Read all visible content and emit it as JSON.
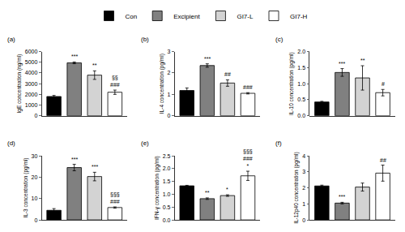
{
  "chart_data": [
    {
      "type": "bar",
      "title": "(a)",
      "y_label": "IgE concentration (ng/ml)",
      "categories": [
        "Con",
        "Excipient",
        "GI7-L",
        "GI7-H"
      ],
      "colors": [
        "#000000",
        "#808080",
        "#d3d3d3",
        "#ffffff"
      ],
      "values": [
        1800,
        4950,
        3800,
        2200
      ],
      "errors": [
        100,
        80,
        400,
        200
      ],
      "annotations": [
        [],
        [
          "***"
        ],
        [
          "**"
        ],
        [
          "§§",
          "###"
        ]
      ],
      "ylim": [
        0,
        6000
      ],
      "yticks": [
        0,
        1000,
        2000,
        3000,
        4000,
        5000,
        6000
      ],
      "tick_labels": "y",
      "legend": "top"
    },
    {
      "type": "bar",
      "title": "(b)",
      "y_label": "IL-4 concentration (pg/ml)",
      "categories": [
        "Con",
        "Excipient",
        "GI7-L",
        "GI7-H"
      ],
      "colors": [
        "#000000",
        "#808080",
        "#d3d3d3",
        "#ffffff"
      ],
      "values": [
        1.18,
        2.35,
        1.53,
        1.05
      ],
      "errors": [
        0.12,
        0.08,
        0.15,
        0.03
      ],
      "annotations": [
        [],
        [
          "***"
        ],
        [
          "##"
        ],
        [
          "###"
        ]
      ],
      "ylim": [
        0,
        3
      ],
      "yticks": [
        0,
        1,
        2,
        3
      ],
      "tick_labels": "y"
    },
    {
      "type": "bar",
      "title": "(c)",
      "y_label": "IL-10 concentration (pg/ml)",
      "categories": [
        "Con",
        "Excipient",
        "GI7-L",
        "GI7-H"
      ],
      "colors": [
        "#000000",
        "#808080",
        "#d3d3d3",
        "#ffffff"
      ],
      "values": [
        0.43,
        1.35,
        1.18,
        0.72
      ],
      "errors": [
        0.02,
        0.12,
        0.38,
        0.1
      ],
      "annotations": [
        [],
        [
          "***"
        ],
        [
          "**"
        ],
        [
          "#"
        ]
      ],
      "ylim": [
        0,
        2
      ],
      "yticks": [
        {
          "value": 0,
          "label": "0.0"
        },
        0.5,
        {
          "value": 1,
          "label": "1.0"
        },
        1.5,
        {
          "value": 2,
          "label": "2.0"
        }
      ],
      "tick_labels": "y"
    },
    {
      "type": "bar",
      "title": "(d)",
      "y_label": "IL-3 concentration (pg/ml)",
      "categories": [
        "Con",
        "Excipient",
        "GI7-L",
        "GI7-H"
      ],
      "colors": [
        "#000000",
        "#808080",
        "#d3d3d3",
        "#ffffff"
      ],
      "values": [
        4.5,
        24.5,
        20.3,
        5.8
      ],
      "errors": [
        0.8,
        1.5,
        2,
        0.3
      ],
      "annotations": [
        [],
        [
          "***"
        ],
        [
          "***"
        ],
        [
          "§§§",
          "###"
        ]
      ],
      "ylim": [
        0,
        30
      ],
      "yticks": [
        0,
        10,
        20,
        30
      ],
      "tick_labels": "y"
    },
    {
      "type": "bar",
      "title": "(e)",
      "y_label": "IFN-γ concentration (pg/ml)",
      "categories": [
        "Con",
        "Excipient",
        "GI7-L",
        "GI7-H"
      ],
      "colors": [
        "#000000",
        "#808080",
        "#d3d3d3",
        "#ffffff"
      ],
      "values": [
        1.33,
        0.83,
        0.95,
        1.72
      ],
      "errors": [
        0.02,
        0.03,
        0.03,
        0.18
      ],
      "annotations": [
        [],
        [
          "**"
        ],
        [
          "*"
        ],
        [
          "§§§",
          "###",
          "*"
        ]
      ],
      "ylim": [
        0,
        2.5
      ],
      "yticks": [
        {
          "value": 0,
          "label": "0.0"
        },
        0.5,
        {
          "value": 1,
          "label": "1.0"
        },
        1.5,
        {
          "value": 2,
          "label": "2.0"
        },
        2.5
      ],
      "tick_labels": "y"
    },
    {
      "type": "bar",
      "title": "(f)",
      "y_label": "IL-12p40 concentration (pg/ml)",
      "categories": [
        "Con",
        "Excipient",
        "GI7-L",
        "GI7-H"
      ],
      "colors": [
        "#000000",
        "#808080",
        "#d3d3d3",
        "#ffffff"
      ],
      "values": [
        2.12,
        1.05,
        2.05,
        2.92
      ],
      "errors": [
        0.05,
        0.05,
        0.25,
        0.5
      ],
      "annotations": [
        [],
        [
          "***"
        ],
        [],
        [
          "##"
        ]
      ],
      "ylim": [
        0,
        4
      ],
      "yticks": [
        0,
        1,
        2,
        3,
        4
      ],
      "tick_labels": "y"
    }
  ]
}
